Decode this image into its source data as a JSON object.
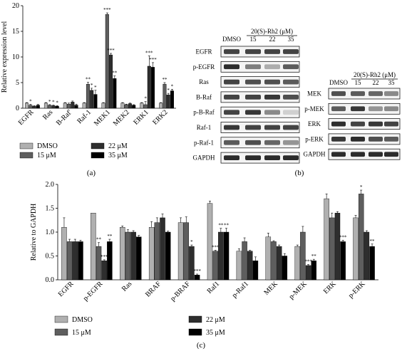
{
  "figure": {
    "panel_labels": {
      "a": "(a)",
      "b": "(b)",
      "c": "(c)"
    },
    "colors": {
      "DMSO": "#b0b0b0",
      "15 μM": "#5e5e5e",
      "22 μM": "#2e2e2e",
      "35 μM": "#000000"
    }
  },
  "chart_data": [
    {
      "id": "a",
      "type": "bar",
      "ylabel": "Relative expression level",
      "xlabel": "",
      "ylim": [
        0,
        20
      ],
      "yticks": [
        0,
        5,
        10,
        15,
        20
      ],
      "categories": [
        "EGFR",
        "Ras",
        "B-Raf",
        "Raf-1",
        "MEK1",
        "MEK2",
        "ERK1",
        "ERK2"
      ],
      "category_labels": [
        "EGFR",
        "Ras",
        "B-Raf'",
        "Raf-1",
        "MEK1",
        "MEK2",
        "ERK1",
        "ERK2"
      ],
      "series": [
        {
          "name": "DMSO",
          "values": [
            1.0,
            1.0,
            1.0,
            1.0,
            1.0,
            1.0,
            1.0,
            1.0
          ]
        },
        {
          "name": "15 μM",
          "values": [
            0.6,
            0.6,
            0.8,
            4.7,
            18.3,
            0.7,
            0.7,
            4.7
          ]
        },
        {
          "name": "22 μM",
          "values": [
            0.4,
            0.5,
            1.2,
            3.5,
            10.4,
            0.9,
            8.2,
            2.6
          ]
        },
        {
          "name": "35 μM",
          "values": [
            0.6,
            0.4,
            0.6,
            2.7,
            5.8,
            0.6,
            8.0,
            3.4
          ]
        }
      ],
      "errors": [
        [
          0.1,
          0.1,
          0.1,
          0.1,
          0.1,
          0.1,
          0.1,
          0.1
        ],
        [
          0.15,
          0.1,
          0.2,
          0.35,
          0.3,
          0.1,
          0.6,
          0.3
        ],
        [
          0.1,
          0.1,
          0.2,
          0.4,
          0.3,
          0.1,
          2.0,
          0.3
        ],
        [
          0.15,
          0.1,
          0.2,
          0.8,
          0.5,
          0.1,
          0.9,
          0.3
        ]
      ],
      "annotations": [
        [
          "",
          "",
          "",
          "",
          "",
          "",
          "",
          ""
        ],
        [
          "*",
          "*",
          "",
          "**",
          "***",
          "",
          "*",
          "**"
        ],
        [
          "",
          "*",
          "",
          "*",
          "***",
          "",
          "***",
          "*"
        ],
        [
          "",
          "*",
          "",
          "*",
          "**",
          "",
          "***",
          "*"
        ]
      ],
      "legend": [
        "DMSO",
        "15 μM",
        "22 μM",
        "35 μM"
      ],
      "legend_placement": "bottom",
      "grid": false
    },
    {
      "id": "c",
      "type": "bar",
      "ylabel": "Relative to GAPDH",
      "xlabel": "",
      "ylim": [
        0,
        2.0
      ],
      "yticks": [
        "0.0",
        "0.5",
        "1.0",
        "1.5",
        "2.0"
      ],
      "categories": [
        "EGFR",
        "p-EGFR",
        "Ras",
        "BRAF",
        "p-BRAF",
        "Raf1",
        "p-Raf1",
        "MEK",
        "p-MEK",
        "ERK",
        "p-ERK"
      ],
      "series": [
        {
          "name": "DMSO",
          "values": [
            1.1,
            1.4,
            1.1,
            1.1,
            1.2,
            1.6,
            0.6,
            0.9,
            0.7,
            1.7,
            1.3
          ]
        },
        {
          "name": "15 μM",
          "values": [
            0.8,
            0.7,
            1.0,
            1.2,
            1.2,
            0.6,
            0.8,
            0.8,
            1.0,
            1.3,
            1.8
          ]
        },
        {
          "name": "22 μM",
          "values": [
            0.8,
            0.4,
            1.0,
            1.3,
            0.7,
            1.0,
            0.6,
            0.7,
            0.3,
            1.4,
            1.0
          ]
        },
        {
          "name": "35 μM",
          "values": [
            0.8,
            0.8,
            0.9,
            1.0,
            0.1,
            1.0,
            0.4,
            0.5,
            0.4,
            0.8,
            0.7
          ]
        }
      ],
      "errors": [
        [
          0.2,
          0.0,
          0.03,
          0.12,
          0.1,
          0.05,
          0.05,
          0.08,
          0.03,
          0.1,
          0.05
        ],
        [
          0.05,
          0.08,
          0.05,
          0.1,
          0.12,
          0.02,
          0.08,
          0.02,
          0.12,
          0.1,
          0.08
        ],
        [
          0.05,
          0.02,
          0.03,
          0.08,
          0.03,
          0.08,
          0.02,
          0.03,
          0.02,
          0.03,
          0.03
        ],
        [
          0.03,
          0.05,
          0.03,
          0.02,
          0.02,
          0.08,
          0.08,
          0.05,
          0.03,
          0.03,
          0.05
        ]
      ],
      "annotations": [
        [
          "",
          "",
          "",
          "",
          "",
          "",
          "",
          "",
          "",
          "",
          ""
        ],
        [
          "",
          "**",
          "",
          "",
          "",
          "***",
          "",
          "",
          "",
          "",
          "*"
        ],
        [
          "",
          "***",
          "",
          "",
          "*",
          "**",
          "",
          "",
          "***",
          "",
          ""
        ],
        [
          "",
          "**",
          "",
          "",
          "***",
          "**",
          "",
          "",
          "**",
          "***",
          "**"
        ]
      ],
      "legend": [
        "DMSO",
        "15 μM",
        "22 μM",
        "35 μM"
      ],
      "legend_placement": "bottom",
      "grid": false
    }
  ],
  "blot_b": {
    "left": {
      "header_sample": "DMSO",
      "header_treatment": "20(S)-Rh2 (μM)",
      "header_doses": [
        "15",
        "22",
        "35"
      ],
      "rows": [
        {
          "label": "EGFR",
          "intensity": [
            0.8,
            0.8,
            0.8,
            0.8
          ]
        },
        {
          "label": "p-EGFR",
          "intensity": [
            0.9,
            0.55,
            0.35,
            0.7
          ]
        },
        {
          "label": "Ras",
          "intensity": [
            0.8,
            0.75,
            0.75,
            0.7
          ]
        },
        {
          "label": "B-Raf",
          "intensity": [
            0.8,
            0.8,
            0.85,
            0.75
          ]
        },
        {
          "label": "p-B-Raf",
          "intensity": [
            0.8,
            0.85,
            0.5,
            0.2
          ]
        },
        {
          "label": "Raf-1",
          "intensity": [
            0.85,
            0.8,
            0.8,
            0.8
          ]
        },
        {
          "label": "p-Raf-1",
          "intensity": [
            0.7,
            0.75,
            0.65,
            0.45
          ]
        },
        {
          "label": "GAPDH",
          "intensity": [
            0.9,
            0.9,
            0.9,
            0.9
          ]
        }
      ]
    },
    "right": {
      "header_sample": "DMSO",
      "header_treatment": "20(S)-Rh2 (μM)",
      "header_doses": [
        "15",
        "22",
        "35"
      ],
      "rows": [
        {
          "label": "MEK",
          "intensity": [
            0.75,
            0.7,
            0.65,
            0.5
          ]
        },
        {
          "label": "p-MEK",
          "intensity": [
            0.7,
            0.85,
            0.45,
            0.5
          ]
        },
        {
          "label": "ERK",
          "intensity": [
            0.9,
            0.8,
            0.85,
            0.8
          ]
        },
        {
          "label": "p-ERK",
          "intensity": [
            0.85,
            0.9,
            0.75,
            0.7
          ]
        },
        {
          "label": "GAPDH",
          "intensity": [
            0.9,
            0.9,
            0.9,
            0.9
          ]
        }
      ]
    }
  }
}
